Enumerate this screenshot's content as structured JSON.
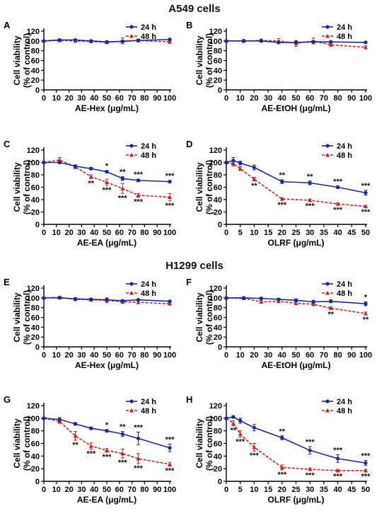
{
  "sections": [
    {
      "title": "A549 cells"
    },
    {
      "title": "H1299 cells"
    }
  ],
  "colors": {
    "series_24h": "#1a2a9c",
    "series_48h": "#c0281e"
  },
  "chart_data": [
    {
      "panel": "A",
      "type": "line",
      "xlabel": "AE-Hex (μg/mL)",
      "ylabel": [
        "Cell viability",
        "(% of control)"
      ],
      "xlim": [
        0,
        100
      ],
      "ylim": [
        0,
        120
      ],
      "xticks": [
        0,
        10,
        20,
        30,
        40,
        50,
        60,
        70,
        80,
        90,
        100
      ],
      "yticks": [
        0,
        20,
        40,
        60,
        80,
        100,
        120
      ],
      "legend": "top-right",
      "x": [
        0,
        12.5,
        25,
        37.5,
        50,
        62.5,
        75,
        100
      ],
      "series": [
        {
          "name": "24 h",
          "style": "solid",
          "values": [
            100,
            102,
            102,
            100,
            98,
            99,
            101,
            103
          ],
          "err": [
            1,
            1.5,
            1.5,
            1.5,
            2,
            2,
            1.5,
            1.5
          ],
          "sig": []
        },
        {
          "name": "48 h",
          "style": "dashed",
          "values": [
            100,
            101,
            100,
            99,
            97,
            100,
            101,
            98
          ],
          "err": [
            1,
            2,
            2,
            2,
            2,
            6,
            3,
            2
          ],
          "sig": []
        }
      ]
    },
    {
      "panel": "B",
      "type": "line",
      "xlabel": "AE-EtOH (μg/mL)",
      "ylabel": [
        "Cell viability",
        "(% of control)"
      ],
      "xlim": [
        0,
        100
      ],
      "ylim": [
        0,
        120
      ],
      "xticks": [
        0,
        10,
        20,
        30,
        40,
        50,
        60,
        70,
        80,
        90,
        100
      ],
      "yticks": [
        0,
        20,
        40,
        60,
        80,
        100,
        120
      ],
      "legend": "top-right",
      "x": [
        0,
        12.5,
        25,
        37.5,
        50,
        62.5,
        75,
        100
      ],
      "series": [
        {
          "name": "24 h",
          "style": "solid",
          "values": [
            100,
            100,
            100,
            97,
            97,
            98,
            98,
            97
          ],
          "err": [
            1,
            2,
            2,
            2,
            2,
            2,
            2,
            1.5
          ],
          "sig": []
        },
        {
          "name": "48 h",
          "style": "dashed",
          "values": [
            100,
            100,
            101,
            100,
            95,
            100,
            92,
            87
          ],
          "err": [
            1,
            3,
            3,
            5,
            6,
            6,
            3,
            3
          ],
          "sig": []
        }
      ]
    },
    {
      "panel": "C",
      "type": "line",
      "xlabel": "AE-EA (μg/mL)",
      "ylabel": [
        "Cell viability",
        "(% of control)"
      ],
      "xlim": [
        0,
        100
      ],
      "ylim": [
        0,
        120
      ],
      "xticks": [
        0,
        10,
        20,
        30,
        40,
        50,
        60,
        70,
        80,
        90,
        100
      ],
      "yticks": [
        0,
        20,
        40,
        60,
        80,
        100,
        120
      ],
      "legend": "top-right",
      "x": [
        0,
        12.5,
        25,
        37.5,
        50,
        62.5,
        75,
        100
      ],
      "series": [
        {
          "name": "24 h",
          "style": "solid",
          "values": [
            100,
            100,
            94,
            90,
            85,
            74,
            71,
            69
          ],
          "err": [
            1,
            2,
            2,
            2,
            2,
            3,
            2,
            2
          ],
          "sig": [
            "",
            "",
            "",
            "",
            "*",
            "**",
            "***",
            "***"
          ]
        },
        {
          "name": "48 h",
          "style": "dashed",
          "values": [
            100,
            104,
            93,
            77,
            68,
            58,
            47,
            44
          ],
          "err": [
            1,
            4,
            3,
            3,
            5,
            8,
            3,
            6
          ],
          "sig": [
            "",
            "",
            "",
            "**",
            "***",
            "***",
            "***",
            "***"
          ]
        }
      ]
    },
    {
      "panel": "D",
      "type": "line",
      "xlabel": "OLRF (μg/mL)",
      "ylabel": [
        "Cell viability",
        "(% of control)"
      ],
      "xlim": [
        0,
        50
      ],
      "ylim": [
        0,
        120
      ],
      "xticks": [
        0,
        5,
        10,
        15,
        20,
        25,
        30,
        35,
        40,
        45,
        50
      ],
      "yticks": [
        0,
        20,
        40,
        60,
        80,
        100,
        120
      ],
      "legend": "top-right",
      "x": [
        0,
        2.5,
        5,
        10,
        20,
        30,
        40,
        50
      ],
      "series": [
        {
          "name": "24 h",
          "style": "solid",
          "values": [
            100,
            103,
            99,
            92,
            69,
            67,
            60,
            51
          ],
          "err": [
            1,
            5,
            3,
            4,
            3,
            3,
            2,
            4
          ],
          "sig": [
            "",
            "",
            "",
            "",
            "**",
            "**",
            "***",
            "***"
          ]
        },
        {
          "name": "48 h",
          "style": "dashed",
          "values": [
            100,
            98,
            90,
            73,
            41,
            39,
            33,
            29
          ],
          "err": [
            1,
            4,
            3,
            3,
            2,
            2,
            2,
            1.5
          ],
          "sig": [
            "",
            "",
            "",
            "**",
            "***",
            "***",
            "***",
            "***"
          ]
        }
      ]
    },
    {
      "panel": "E",
      "type": "line",
      "xlabel": "AE-Hex (μg/mL)",
      "ylabel": [
        "Cell viability",
        "(% of control)"
      ],
      "xlim": [
        0,
        100
      ],
      "ylim": [
        0,
        120
      ],
      "xticks": [
        0,
        10,
        20,
        30,
        40,
        50,
        60,
        70,
        80,
        90,
        100
      ],
      "yticks": [
        0,
        20,
        40,
        60,
        80,
        100,
        120
      ],
      "legend": "top-right",
      "x": [
        0,
        12.5,
        25,
        37.5,
        50,
        62.5,
        75,
        100
      ],
      "series": [
        {
          "name": "24 h",
          "style": "solid",
          "values": [
            100,
            100,
            98,
            97,
            96,
            94,
            96,
            93
          ],
          "err": [
            1,
            2,
            2,
            2,
            3,
            2,
            2,
            1.5
          ],
          "sig": []
        },
        {
          "name": "48 h",
          "style": "dashed",
          "values": [
            100,
            101,
            97,
            96,
            95,
            92,
            91,
            88
          ],
          "err": [
            1,
            2,
            3,
            3,
            5,
            3,
            3,
            2
          ],
          "sig": []
        }
      ]
    },
    {
      "panel": "F",
      "type": "line",
      "xlabel": "AE-EtOH (μg/mL)",
      "ylabel": [
        "Cell viability",
        "(% of control)"
      ],
      "xlim": [
        0,
        100
      ],
      "ylim": [
        0,
        120
      ],
      "xticks": [
        0,
        10,
        20,
        30,
        40,
        50,
        60,
        70,
        80,
        90,
        100
      ],
      "yticks": [
        0,
        20,
        40,
        60,
        80,
        100,
        120
      ],
      "legend": "top-right",
      "x": [
        0,
        12.5,
        25,
        37.5,
        50,
        62.5,
        75,
        100
      ],
      "series": [
        {
          "name": "24 h",
          "style": "solid",
          "values": [
            100,
            100,
            99,
            97,
            95,
            92,
            93,
            88
          ],
          "err": [
            1,
            2,
            2,
            2,
            3,
            3,
            3,
            4
          ],
          "sig": [
            "",
            "",
            "",
            "",
            "",
            "",
            "",
            "*"
          ]
        },
        {
          "name": "48 h",
          "style": "dashed",
          "values": [
            100,
            99,
            92,
            93,
            89,
            87,
            79,
            68
          ],
          "err": [
            1,
            2,
            3,
            3,
            3,
            3,
            3,
            3
          ],
          "sig": [
            "",
            "",
            "",
            "",
            "",
            "",
            "**",
            "**"
          ]
        }
      ]
    },
    {
      "panel": "G",
      "type": "line",
      "xlabel": "AE-EA (μg/mL)",
      "ylabel": [
        "Cell viability",
        "(% of control)"
      ],
      "xlim": [
        0,
        100
      ],
      "ylim": [
        0,
        120
      ],
      "xticks": [
        0,
        10,
        20,
        30,
        40,
        50,
        60,
        70,
        80,
        90,
        100
      ],
      "yticks": [
        0,
        20,
        40,
        60,
        80,
        100,
        120
      ],
      "legend": "top-right",
      "x": [
        0,
        12.5,
        25,
        37.5,
        50,
        62.5,
        75,
        100
      ],
      "series": [
        {
          "name": "24 h",
          "style": "solid",
          "values": [
            100,
            98,
            91,
            84,
            80,
            75,
            68,
            53
          ],
          "err": [
            1,
            3,
            2,
            2,
            2,
            4,
            10,
            6
          ],
          "sig": [
            "",
            "",
            "",
            "",
            "*",
            "**",
            "***",
            "***"
          ]
        },
        {
          "name": "48 h",
          "style": "dashed",
          "values": [
            100,
            95,
            72,
            56,
            49,
            44,
            36,
            27
          ],
          "err": [
            1,
            3,
            7,
            5,
            3,
            7,
            8,
            3
          ],
          "sig": [
            "",
            "",
            "**",
            "***",
            "***",
            "***",
            "***",
            "***"
          ]
        }
      ]
    },
    {
      "panel": "H",
      "type": "line",
      "xlabel": "OLRF (μg/mL)",
      "ylabel": [
        "Cell viability",
        "(% of control)"
      ],
      "xlim": [
        0,
        50
      ],
      "ylim": [
        0,
        120
      ],
      "xticks": [
        0,
        5,
        10,
        15,
        20,
        25,
        30,
        35,
        40,
        45,
        50
      ],
      "yticks": [
        0,
        20,
        40,
        60,
        80,
        100,
        120
      ],
      "legend": "top-right",
      "x": [
        0,
        2.5,
        5,
        10,
        20,
        30,
        40,
        50
      ],
      "series": [
        {
          "name": "24 h",
          "style": "solid",
          "values": [
            100,
            102,
            96,
            85,
            69,
            49,
            36,
            29
          ],
          "err": [
            1,
            2,
            4,
            5,
            3,
            6,
            6,
            4
          ],
          "sig": [
            "",
            "",
            "",
            "",
            "**",
            "***",
            "***",
            "***"
          ]
        },
        {
          "name": "48 h",
          "style": "dashed",
          "values": [
            100,
            92,
            75,
            54,
            22,
            19,
            17,
            17
          ],
          "err": [
            1,
            4,
            5,
            6,
            4,
            2,
            2,
            2
          ],
          "sig": [
            "",
            "**",
            "***",
            "***",
            "***",
            "***",
            "***",
            "***"
          ]
        }
      ]
    }
  ]
}
